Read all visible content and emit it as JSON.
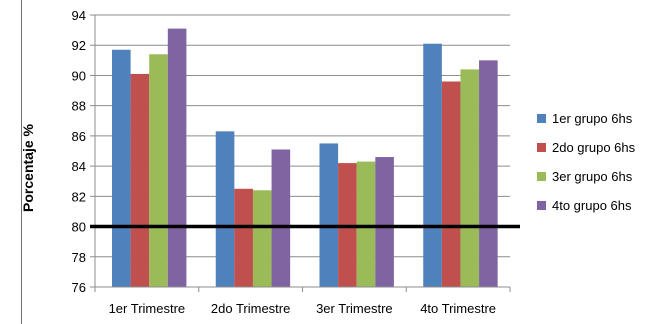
{
  "chart_data": {
    "type": "bar",
    "title": "",
    "xlabel": "",
    "ylabel": "Porcentaje %",
    "ylim": [
      76,
      94
    ],
    "ytick_step": 2,
    "yticks": [
      "76",
      "78",
      "80",
      "82",
      "84",
      "86",
      "88",
      "90",
      "92",
      "94"
    ],
    "grid": true,
    "legend_position": "right",
    "categories": [
      "1er Trimestre",
      "2do Trimestre",
      "3er Trimestre",
      "4to Trimestre"
    ],
    "series": [
      {
        "name": "1er grupo 6hs",
        "color": "#4f81bd",
        "values": [
          91.7,
          86.3,
          85.5,
          92.1
        ]
      },
      {
        "name": "2do grupo 6hs",
        "color": "#c0504d",
        "values": [
          90.1,
          82.5,
          84.2,
          89.6
        ]
      },
      {
        "name": "3er grupo 6hs",
        "color": "#9bbb59",
        "values": [
          91.4,
          82.4,
          84.3,
          90.4
        ]
      },
      {
        "name": "4to grupo 6hs",
        "color": "#8064a2",
        "values": [
          93.1,
          85.1,
          84.6,
          91.0
        ]
      }
    ],
    "reference_line": {
      "value": 80,
      "color": "#000000"
    }
  }
}
